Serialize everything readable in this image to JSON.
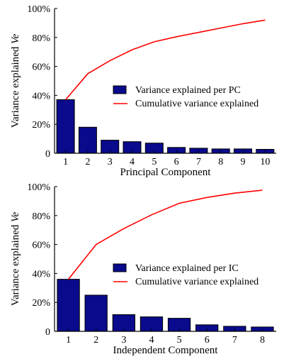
{
  "chart_data": [
    {
      "type": "bar",
      "categories": [
        "1",
        "2",
        "3",
        "4",
        "5",
        "6",
        "7",
        "8",
        "9",
        "10"
      ],
      "series": [
        {
          "name": "Variance explained per PC",
          "kind": "bar",
          "values": [
            37,
            18,
            9,
            8,
            7,
            4,
            3.5,
            3,
            3,
            2.7
          ]
        },
        {
          "name": "Cumulative variance explained",
          "kind": "line",
          "values": [
            37,
            55,
            64,
            71.5,
            77,
            80.5,
            83.5,
            86.5,
            89.5,
            92
          ]
        }
      ],
      "yticks": [
        "0",
        "20%",
        "40%",
        "60%",
        "80%",
        "100%"
      ],
      "ylim": [
        0,
        100
      ],
      "xlabel": "Principal Component",
      "ylabel": "Variance explained",
      "ylabel_symbol": "Ve",
      "legend_position": "middle-right",
      "colors": {
        "bar": "#0a0a8c",
        "line": "#ff0000"
      }
    },
    {
      "type": "bar",
      "categories": [
        "1",
        "2",
        "3",
        "4",
        "5",
        "6",
        "7",
        "8"
      ],
      "series": [
        {
          "name": "Variance explained per IC",
          "kind": "bar",
          "values": [
            36,
            25,
            11.5,
            10,
            9,
            4.5,
            3.5,
            3
          ]
        },
        {
          "name": "Cumulative variance explained",
          "kind": "line",
          "values": [
            36,
            60,
            71,
            80.5,
            88.5,
            92.5,
            95.5,
            97.5
          ]
        }
      ],
      "yticks": [
        "0",
        "20%",
        "40%",
        "60%",
        "80%",
        "100%"
      ],
      "ylim": [
        0,
        100
      ],
      "xlabel": "Independent Component",
      "ylabel": "Variance explained",
      "ylabel_symbol": "Ve",
      "legend_position": "middle-right",
      "colors": {
        "bar": "#0a0a8c",
        "line": "#ff0000"
      }
    }
  ]
}
